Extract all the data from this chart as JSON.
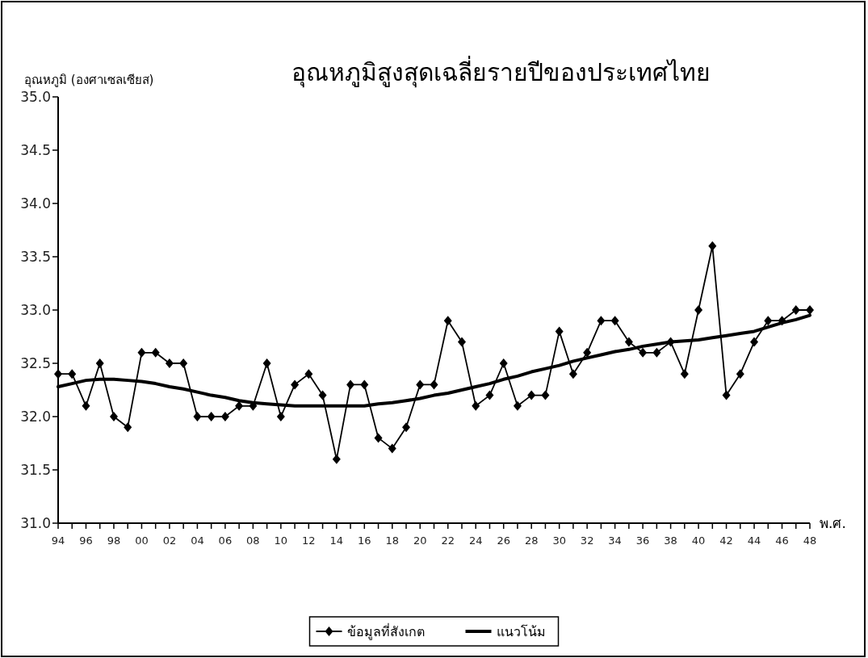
{
  "chart_data": {
    "type": "line",
    "title": "อุณหภูมิสูงสุดเฉลี่ยรายปีของประเทศไทย",
    "ylabel": "อุณหภูมิ (องศาเซลเซียส)",
    "xlabel": "พ.ศ.",
    "categories": [
      "94",
      null,
      "96",
      null,
      "98",
      null,
      "00",
      null,
      "02",
      null,
      "04",
      null,
      "06",
      null,
      "08",
      null,
      "10",
      null,
      "12",
      null,
      "14",
      null,
      "16",
      null,
      "18",
      null,
      "20",
      null,
      "22",
      null,
      "24",
      null,
      "26",
      null,
      "28",
      null,
      "30",
      null,
      "32",
      null,
      "34",
      null,
      "36",
      null,
      "38",
      null,
      "40",
      null,
      "42",
      null,
      "44",
      null,
      "46",
      null,
      "48"
    ],
    "series": [
      {
        "name": "ข้อมูลที่สังเกต",
        "color": "#000000",
        "marker": "diamond",
        "values": [
          32.4,
          32.4,
          32.1,
          32.5,
          32.0,
          31.9,
          32.6,
          32.6,
          32.5,
          32.5,
          32.0,
          32.0,
          32.0,
          32.1,
          32.1,
          32.5,
          32.0,
          32.3,
          32.4,
          32.2,
          31.6,
          32.3,
          32.3,
          31.8,
          31.7,
          31.9,
          32.3,
          32.3,
          32.9,
          32.7,
          32.1,
          32.2,
          32.5,
          32.1,
          32.2,
          32.2,
          32.8,
          32.4,
          32.6,
          32.9,
          32.9,
          32.7,
          32.6,
          32.6,
          32.7,
          32.4,
          33.0,
          33.6,
          32.2,
          32.4,
          32.7,
          32.9,
          32.9,
          33.0,
          33.0
        ]
      },
      {
        "name": "แนวโน้ม",
        "color": "#000000",
        "marker": "none",
        "values": [
          32.28,
          32.31,
          32.34,
          32.35,
          32.35,
          32.34,
          32.33,
          32.31,
          32.28,
          32.26,
          32.23,
          32.2,
          32.18,
          32.15,
          32.13,
          32.12,
          32.11,
          32.1,
          32.1,
          32.1,
          32.1,
          32.1,
          32.1,
          32.12,
          32.13,
          32.15,
          32.17,
          32.2,
          32.22,
          32.25,
          32.28,
          32.31,
          32.35,
          32.38,
          32.42,
          32.45,
          32.48,
          32.52,
          32.55,
          32.58,
          32.61,
          32.63,
          32.66,
          32.68,
          32.7,
          32.71,
          32.72,
          32.74,
          32.76,
          32.78,
          32.8,
          32.84,
          32.88,
          32.91,
          32.95
        ]
      }
    ],
    "ylim": [
      31,
      35
    ],
    "yticks": [
      {
        "value": 31,
        "label": "31.0"
      },
      {
        "value": 31.5,
        "label": "31.5"
      },
      {
        "value": 32,
        "label": "32.0"
      },
      {
        "value": 32.5,
        "label": "32.5"
      },
      {
        "value": 33,
        "label": "33.0"
      },
      {
        "value": 33.5,
        "label": "33.5"
      },
      {
        "value": 34,
        "label": "34.0"
      },
      {
        "value": 34.5,
        "label": "34.5"
      },
      {
        "value": 35,
        "label": "35.0"
      }
    ],
    "grid": false,
    "legend": "bottom"
  }
}
